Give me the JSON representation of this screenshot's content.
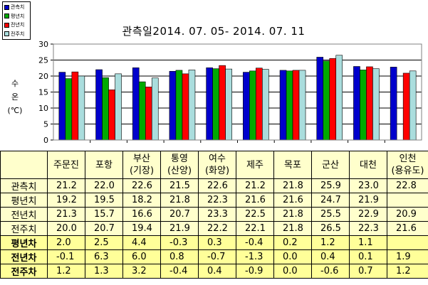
{
  "chart_data": {
    "type": "bar",
    "title": "관측일2014. 07. 05-  2014. 07. 11",
    "ylabel": "수\n온\n(℃)",
    "ylim": [
      0,
      30
    ],
    "yticks": [
      0,
      5,
      10,
      15,
      20,
      25,
      30
    ],
    "grid": true,
    "legend_position": "top-left",
    "categories": [
      "주문진",
      "포항",
      "부산\n(기장)",
      "통영\n(산양)",
      "여수\n(화양)",
      "제주",
      "목포",
      "군산",
      "대천",
      "인천\n(용유도)"
    ],
    "series": [
      {
        "name": "관측치",
        "color": "#0000cc",
        "values": [
          21.2,
          22.0,
          22.6,
          21.5,
          22.6,
          21.2,
          21.8,
          25.9,
          23.0,
          22.8
        ]
      },
      {
        "name": "평년치",
        "color": "#00aa00",
        "values": [
          19.2,
          19.5,
          18.2,
          21.8,
          22.3,
          21.6,
          21.6,
          24.7,
          21.9,
          null
        ]
      },
      {
        "name": "전년치",
        "color": "#ff0000",
        "values": [
          21.3,
          15.7,
          16.6,
          20.7,
          23.3,
          22.5,
          21.8,
          25.5,
          22.9,
          20.9
        ]
      },
      {
        "name": "전주치",
        "color": "#aadddd",
        "values": [
          20.0,
          20.7,
          19.4,
          21.9,
          22.2,
          22.1,
          21.8,
          26.5,
          22.3,
          21.6
        ]
      }
    ]
  },
  "table": {
    "header": [
      "주문진",
      "포항",
      "부산\n(기장)",
      "통영\n(산양)",
      "여수\n(화양)",
      "제주",
      "목포",
      "군산",
      "대천",
      "인천\n(용유도)"
    ],
    "rows": [
      {
        "label": "관측치",
        "bold": false,
        "values": [
          "21.2",
          "22.0",
          "22.6",
          "21.5",
          "22.6",
          "21.2",
          "21.8",
          "25.9",
          "23.0",
          "22.8"
        ]
      },
      {
        "label": "평년치",
        "bold": false,
        "values": [
          "19.2",
          "19.5",
          "18.2",
          "21.8",
          "22.3",
          "21.6",
          "21.6",
          "24.7",
          "21.9",
          ""
        ]
      },
      {
        "label": "전년치",
        "bold": false,
        "values": [
          "21.3",
          "15.7",
          "16.6",
          "20.7",
          "23.3",
          "22.5",
          "21.8",
          "25.5",
          "22.9",
          "20.9"
        ]
      },
      {
        "label": "전주치",
        "bold": false,
        "values": [
          "20.0",
          "20.7",
          "19.4",
          "21.9",
          "22.2",
          "22.1",
          "21.8",
          "26.5",
          "22.3",
          "21.6"
        ]
      },
      {
        "label": "평년차",
        "bold": true,
        "values": [
          "2.0",
          "2.5",
          "4.4",
          "-0.3",
          "0.3",
          "-0.4",
          "0.2",
          "1.2",
          "1.1",
          ""
        ]
      },
      {
        "label": "전년차",
        "bold": true,
        "values": [
          "-0.1",
          "6.3",
          "6.0",
          "0.8",
          "-0.7",
          "-1.3",
          "0.0",
          "0.4",
          "0.1",
          "1.9"
        ]
      },
      {
        "label": "전주차",
        "bold": true,
        "values": [
          "1.2",
          "1.3",
          "3.2",
          "-0.4",
          "0.4",
          "-0.9",
          "0.0",
          "-0.6",
          "0.7",
          "1.2"
        ]
      }
    ]
  }
}
